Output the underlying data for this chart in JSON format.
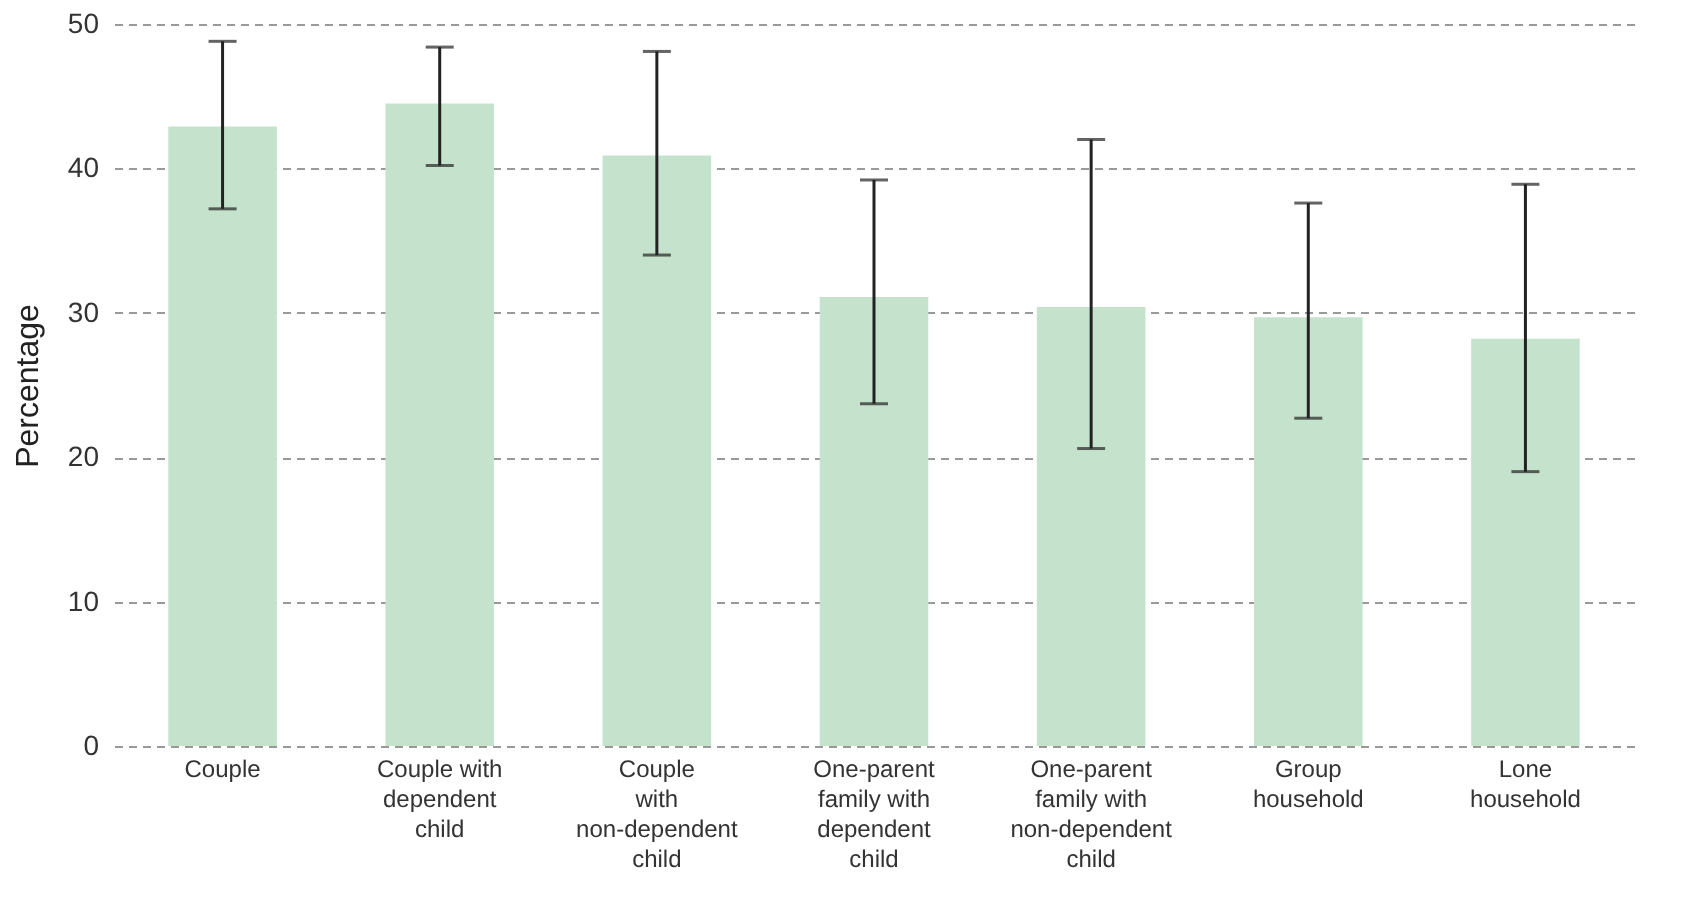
{
  "chart_data": {
    "type": "bar",
    "ylabel": "Percentage",
    "categories": [
      "Couple",
      "Couple with\ndependent\nchild",
      "Couple\nwith\nnon-dependent\nchild",
      "One-parent\nfamily with\ndependent\nchild",
      "One-parent\nfamily with\nnon-dependent\nchild",
      "Group\nhousehold",
      "Lone\nhousehold"
    ],
    "values": [
      42.9,
      44.5,
      40.9,
      31.1,
      30.4,
      29.7,
      28.2
    ],
    "errors": [
      [
        37.2,
        48.8
      ],
      [
        40.2,
        48.4
      ],
      [
        34.0,
        48.1
      ],
      [
        23.7,
        39.2
      ],
      [
        20.6,
        42.0
      ],
      [
        22.7,
        37.6
      ],
      [
        19.0,
        38.9
      ]
    ],
    "color": "#c5e3cc",
    "ylim": [
      0,
      50
    ],
    "yticks": [
      0,
      10,
      20,
      30,
      40,
      50
    ],
    "grid": "y"
  }
}
